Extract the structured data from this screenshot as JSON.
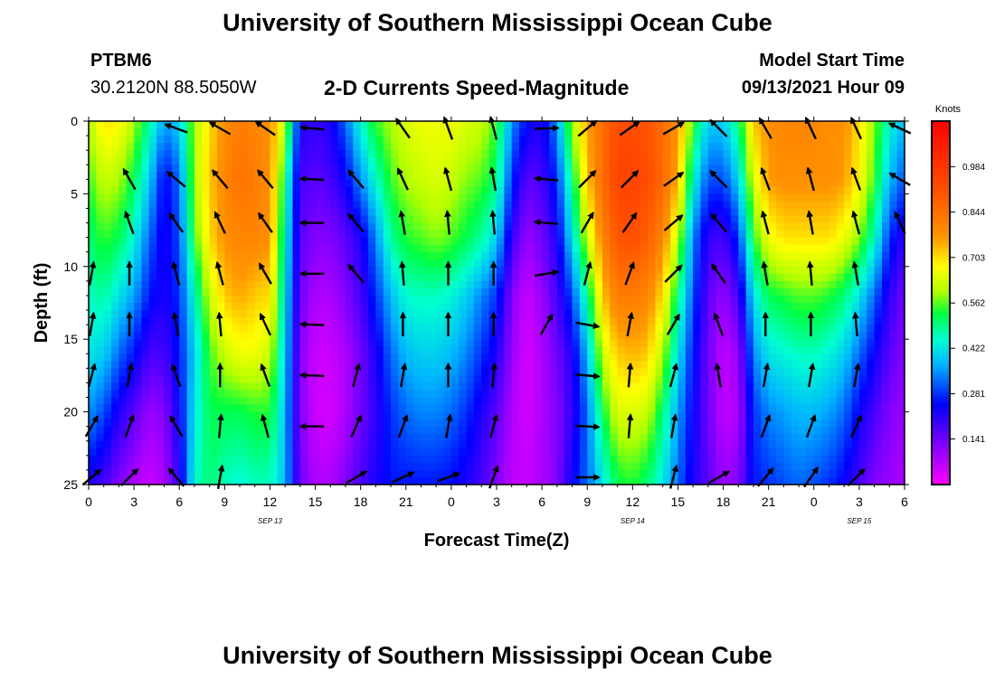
{
  "page": {
    "title_top": "University of Southern Mississippi Ocean Cube",
    "title_bottom": "University of Southern Mississippi Ocean Cube",
    "station": "PTBM6",
    "coords": "30.2120N  88.5050W",
    "subtitle": "2-D Currents Speed-Magnitude",
    "model_label": "Model Start Time",
    "model_time": "09/13/2021 Hour 09"
  },
  "chart_data": {
    "type": "heatmap",
    "title": "2-D Currents Speed-Magnitude",
    "xlabel": "Forecast Time(Z)",
    "ylabel": "Depth (ft)",
    "xlim": [
      0,
      54
    ],
    "ylim": [
      0,
      25
    ],
    "x_tick_values": [
      0,
      3,
      6,
      9,
      12,
      15,
      18,
      21,
      24,
      27,
      30,
      33,
      36,
      39,
      42,
      45,
      48,
      51,
      54
    ],
    "x_tick_labels": [
      "0",
      "3",
      "6",
      "9",
      "12",
      "15",
      "18",
      "21",
      "0",
      "3",
      "6",
      "9",
      "12",
      "15",
      "18",
      "21",
      "0",
      "3",
      "6"
    ],
    "date_labels": [
      {
        "x": 12,
        "text": "SEP 13"
      },
      {
        "x": 36,
        "text": "SEP 14"
      },
      {
        "x": 51,
        "text": "SEP 15"
      }
    ],
    "y_tick_values": [
      0,
      5,
      10,
      15,
      20,
      25
    ],
    "y_tick_labels": [
      "0",
      "5",
      "10",
      "15",
      "20",
      "25"
    ],
    "colorbar": {
      "title": "Knots",
      "min": 0.0,
      "max": 1.125,
      "tick_values": [
        0.141,
        0.281,
        0.422,
        0.562,
        0.703,
        0.844,
        0.984
      ],
      "tick_labels": [
        "0.141",
        "0.281",
        "0.422",
        "0.562",
        "0.703",
        "0.844",
        "0.984"
      ]
    },
    "speed_columns": [
      {
        "t": 0,
        "s": [
          0.6,
          0.55,
          0.5,
          0.46,
          0.42,
          0.35,
          0.22
        ]
      },
      {
        "t": 1,
        "s": [
          0.7,
          0.62,
          0.55,
          0.48,
          0.4,
          0.3,
          0.18
        ]
      },
      {
        "t": 2,
        "s": [
          0.68,
          0.6,
          0.52,
          0.42,
          0.32,
          0.22,
          0.12
        ]
      },
      {
        "t": 3,
        "s": [
          0.6,
          0.52,
          0.44,
          0.36,
          0.26,
          0.16,
          0.08
        ]
      },
      {
        "t": 4,
        "s": [
          0.48,
          0.4,
          0.32,
          0.26,
          0.18,
          0.1,
          0.05
        ]
      },
      {
        "t": 5,
        "s": [
          0.36,
          0.24,
          0.22,
          0.22,
          0.18,
          0.12,
          0.08
        ]
      },
      {
        "t": 6,
        "s": [
          0.4,
          0.32,
          0.3,
          0.28,
          0.26,
          0.24,
          0.2
        ]
      },
      {
        "t": 7,
        "s": [
          0.6,
          0.6,
          0.55,
          0.45,
          0.4,
          0.42,
          0.45
        ]
      },
      {
        "t": 8,
        "s": [
          0.7,
          0.72,
          0.7,
          0.62,
          0.55,
          0.52,
          0.5
        ]
      },
      {
        "t": 9,
        "s": [
          0.78,
          0.8,
          0.78,
          0.72,
          0.62,
          0.52,
          0.46
        ]
      },
      {
        "t": 10,
        "s": [
          0.82,
          0.84,
          0.8,
          0.75,
          0.66,
          0.52,
          0.44
        ]
      },
      {
        "t": 11,
        "s": [
          0.8,
          0.82,
          0.8,
          0.72,
          0.66,
          0.54,
          0.46
        ]
      },
      {
        "t": 12,
        "s": [
          0.78,
          0.78,
          0.78,
          0.7,
          0.62,
          0.54,
          0.46
        ]
      },
      {
        "t": 13,
        "s": [
          0.62,
          0.5,
          0.45,
          0.42,
          0.4,
          0.38,
          0.38
        ]
      },
      {
        "t": 14,
        "s": [
          0.22,
          0.18,
          0.16,
          0.14,
          0.12,
          0.12,
          0.14
        ]
      },
      {
        "t": 15,
        "s": [
          0.2,
          0.16,
          0.12,
          0.08,
          0.05,
          0.05,
          0.08
        ]
      },
      {
        "t": 16,
        "s": [
          0.22,
          0.18,
          0.12,
          0.08,
          0.05,
          0.04,
          0.08
        ]
      },
      {
        "t": 17,
        "s": [
          0.32,
          0.24,
          0.16,
          0.12,
          0.08,
          0.08,
          0.12
        ]
      },
      {
        "t": 18,
        "s": [
          0.45,
          0.35,
          0.22,
          0.18,
          0.14,
          0.14,
          0.18
        ]
      },
      {
        "t": 19,
        "s": [
          0.55,
          0.45,
          0.34,
          0.28,
          0.22,
          0.2,
          0.22
        ]
      },
      {
        "t": 20,
        "s": [
          0.6,
          0.55,
          0.48,
          0.38,
          0.32,
          0.28,
          0.26
        ]
      },
      {
        "t": 21,
        "s": [
          0.64,
          0.6,
          0.54,
          0.45,
          0.38,
          0.32,
          0.26
        ]
      },
      {
        "t": 22,
        "s": [
          0.66,
          0.62,
          0.56,
          0.46,
          0.4,
          0.34,
          0.26
        ]
      },
      {
        "t": 23,
        "s": [
          0.66,
          0.64,
          0.58,
          0.46,
          0.4,
          0.34,
          0.26
        ]
      },
      {
        "t": 24,
        "s": [
          0.66,
          0.62,
          0.56,
          0.44,
          0.38,
          0.32,
          0.25
        ]
      },
      {
        "t": 25,
        "s": [
          0.64,
          0.58,
          0.52,
          0.4,
          0.34,
          0.28,
          0.22
        ]
      },
      {
        "t": 26,
        "s": [
          0.62,
          0.56,
          0.48,
          0.34,
          0.28,
          0.22,
          0.18
        ]
      },
      {
        "t": 27,
        "s": [
          0.55,
          0.5,
          0.4,
          0.28,
          0.22,
          0.16,
          0.12
        ]
      },
      {
        "t": 28,
        "s": [
          0.35,
          0.28,
          0.2,
          0.12,
          0.1,
          0.08,
          0.06
        ]
      },
      {
        "t": 29,
        "s": [
          0.25,
          0.16,
          0.1,
          0.05,
          0.04,
          0.04,
          0.06
        ]
      },
      {
        "t": 30,
        "s": [
          0.22,
          0.18,
          0.14,
          0.1,
          0.08,
          0.08,
          0.08
        ]
      },
      {
        "t": 31,
        "s": [
          0.35,
          0.28,
          0.22,
          0.18,
          0.14,
          0.12,
          0.12
        ]
      },
      {
        "t": 32,
        "s": [
          0.6,
          0.5,
          0.42,
          0.3,
          0.22,
          0.2,
          0.24
        ]
      },
      {
        "t": 33,
        "s": [
          0.75,
          0.72,
          0.62,
          0.48,
          0.38,
          0.32,
          0.32
        ]
      },
      {
        "t": 34,
        "s": [
          0.85,
          0.85,
          0.8,
          0.72,
          0.62,
          0.52,
          0.42
        ]
      },
      {
        "t": 35,
        "s": [
          0.92,
          0.95,
          0.9,
          0.82,
          0.72,
          0.64,
          0.52
        ]
      },
      {
        "t": 36,
        "s": [
          0.92,
          0.95,
          0.92,
          0.82,
          0.74,
          0.64,
          0.54
        ]
      },
      {
        "t": 37,
        "s": [
          0.9,
          0.92,
          0.88,
          0.8,
          0.72,
          0.62,
          0.5
        ]
      },
      {
        "t": 38,
        "s": [
          0.85,
          0.86,
          0.8,
          0.7,
          0.6,
          0.5,
          0.42
        ]
      },
      {
        "t": 39,
        "s": [
          0.78,
          0.74,
          0.62,
          0.5,
          0.42,
          0.36,
          0.32
        ]
      },
      {
        "t": 40,
        "s": [
          0.55,
          0.45,
          0.34,
          0.3,
          0.26,
          0.24,
          0.22
        ]
      },
      {
        "t": 41,
        "s": [
          0.4,
          0.3,
          0.2,
          0.16,
          0.14,
          0.14,
          0.16
        ]
      },
      {
        "t": 42,
        "s": [
          0.4,
          0.3,
          0.18,
          0.1,
          0.06,
          0.06,
          0.1
        ]
      },
      {
        "t": 43,
        "s": [
          0.5,
          0.4,
          0.28,
          0.18,
          0.1,
          0.08,
          0.12
        ]
      },
      {
        "t": 44,
        "s": [
          0.72,
          0.64,
          0.54,
          0.42,
          0.34,
          0.28,
          0.26
        ]
      },
      {
        "t": 45,
        "s": [
          0.78,
          0.76,
          0.66,
          0.52,
          0.42,
          0.34,
          0.28
        ]
      },
      {
        "t": 46,
        "s": [
          0.8,
          0.78,
          0.7,
          0.54,
          0.44,
          0.36,
          0.3
        ]
      },
      {
        "t": 47,
        "s": [
          0.8,
          0.78,
          0.7,
          0.56,
          0.46,
          0.38,
          0.32
        ]
      },
      {
        "t": 48,
        "s": [
          0.8,
          0.78,
          0.7,
          0.56,
          0.46,
          0.38,
          0.3
        ]
      },
      {
        "t": 49,
        "s": [
          0.78,
          0.78,
          0.7,
          0.54,
          0.44,
          0.36,
          0.28
        ]
      },
      {
        "t": 50,
        "s": [
          0.78,
          0.76,
          0.66,
          0.5,
          0.4,
          0.32,
          0.24
        ]
      },
      {
        "t": 51,
        "s": [
          0.7,
          0.68,
          0.58,
          0.42,
          0.32,
          0.24,
          0.18
        ]
      },
      {
        "t": 52,
        "s": [
          0.58,
          0.55,
          0.46,
          0.32,
          0.24,
          0.18,
          0.12
        ]
      },
      {
        "t": 53,
        "s": [
          0.45,
          0.38,
          0.28,
          0.2,
          0.16,
          0.12,
          0.1
        ]
      },
      {
        "t": 54,
        "s": [
          0.38,
          0.3,
          0.2,
          0.14,
          0.12,
          0.1,
          0.08
        ]
      }
    ],
    "speed_depths": [
      0,
      4,
      8,
      12,
      16,
      20,
      25
    ],
    "vector_depths": [
      0.5,
      4,
      7,
      10.5,
      14,
      17.5,
      21,
      24.5
    ],
    "vectors": [
      {
        "t": 0.2,
        "dirs": [
          null,
          null,
          null,
          10,
          10,
          15,
          30,
          50
        ]
      },
      {
        "t": 2.7,
        "dirs": [
          null,
          -30,
          -20,
          0,
          0,
          10,
          20,
          45
        ]
      },
      {
        "t": 5.8,
        "dirs": [
          -70,
          -50,
          -35,
          -15,
          -10,
          -20,
          -30,
          -40
        ]
      },
      {
        "t": 8.7,
        "dirs": [
          -60,
          -40,
          -25,
          -15,
          -5,
          0,
          5,
          10
        ]
      },
      {
        "t": 11.7,
        "dirs": [
          -55,
          -40,
          -35,
          -30,
          -25,
          -20,
          -15,
          null
        ]
      },
      {
        "t": 14.8,
        "dirs": [
          -85,
          -87,
          -90,
          -90,
          -88,
          -88,
          -90,
          null
        ]
      },
      {
        "t": 17.7,
        "dirs": [
          null,
          -40,
          -40,
          -40,
          null,
          15,
          25,
          60
        ]
      },
      {
        "t": 20.8,
        "dirs": [
          -35,
          -25,
          -10,
          -5,
          0,
          10,
          20,
          65
        ]
      },
      {
        "t": 23.8,
        "dirs": [
          -20,
          -15,
          -5,
          0,
          0,
          0,
          10,
          70
        ]
      },
      {
        "t": 26.8,
        "dirs": [
          -15,
          -10,
          -5,
          0,
          0,
          5,
          15,
          20
        ]
      },
      {
        "t": 30.3,
        "dirs": [
          88,
          -85,
          -85,
          80,
          30,
          null,
          null,
          null
        ]
      },
      {
        "t": 33,
        "dirs": [
          50,
          45,
          30,
          15,
          100,
          95,
          93,
          90
        ]
      },
      {
        "t": 35.8,
        "dirs": [
          55,
          45,
          35,
          20,
          10,
          5,
          5,
          null
        ]
      },
      {
        "t": 38.7,
        "dirs": [
          60,
          55,
          50,
          45,
          30,
          15,
          10,
          15
        ]
      },
      {
        "t": 41.7,
        "dirs": [
          -45,
          -45,
          -40,
          -35,
          -20,
          -10,
          null,
          60
        ]
      },
      {
        "t": 44.8,
        "dirs": [
          -30,
          -20,
          -15,
          -10,
          0,
          10,
          20,
          40
        ]
      },
      {
        "t": 47.8,
        "dirs": [
          -25,
          -15,
          -10,
          -5,
          0,
          10,
          20,
          35
        ]
      },
      {
        "t": 50.8,
        "dirs": [
          -25,
          -20,
          -15,
          -10,
          -5,
          10,
          25,
          45
        ]
      },
      {
        "t": 53.7,
        "dirs": [
          -65,
          -60,
          -25,
          null,
          null,
          null,
          null,
          null
        ]
      }
    ]
  }
}
